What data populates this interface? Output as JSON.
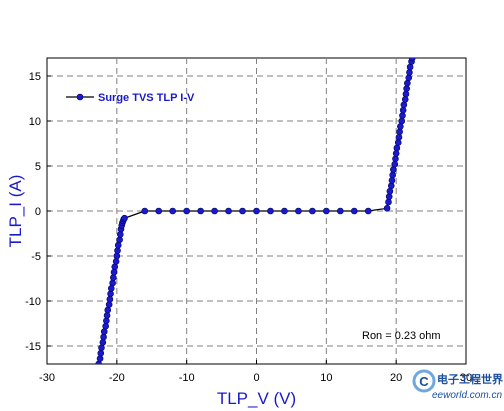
{
  "chart_data": {
    "type": "line",
    "title": "",
    "xlabel": "TLP_V (V)",
    "ylabel": "TLP_I (A)",
    "xlim": [
      -30,
      30
    ],
    "ylim": [
      -17,
      17
    ],
    "xticks": [
      -30,
      -20,
      -10,
      0,
      10,
      20,
      30
    ],
    "yticks": [
      -15,
      -10,
      -5,
      0,
      5,
      10,
      15
    ],
    "grid": true,
    "legend_position": "top-left",
    "series": [
      {
        "name": "Surge TVS TLP I-V",
        "color": "#1a1acc",
        "line_color": "#000000",
        "marker": "circle",
        "x": [
          -22.6,
          -22.4,
          -22.3,
          -22.2,
          -22.0,
          -21.9,
          -21.8,
          -21.6,
          -21.5,
          -21.4,
          -21.3,
          -21.1,
          -21.0,
          -20.9,
          -20.8,
          -20.6,
          -20.5,
          -20.4,
          -20.3,
          -20.1,
          -20.0,
          -19.9,
          -19.8,
          -19.6,
          -19.5,
          -19.4,
          -19.3,
          -19.2,
          -19.1,
          -19.0,
          -18.9,
          -16.0,
          -14.0,
          -12.0,
          -10.0,
          -8.0,
          -6.0,
          -4.0,
          -2.0,
          0.0,
          2.0,
          4.0,
          6.0,
          8.0,
          10.0,
          12.0,
          14.0,
          16.0,
          18.7,
          18.9,
          19.0,
          19.1,
          19.3,
          19.4,
          19.5,
          19.6,
          19.8,
          19.9,
          20.0,
          20.1,
          20.3,
          20.4,
          20.5,
          20.6,
          20.8,
          20.9,
          21.0,
          21.1,
          21.3,
          21.4,
          21.5,
          21.6,
          21.8,
          21.9,
          22.0,
          22.2,
          22.3
        ],
        "y": [
          -17.0,
          -16.4,
          -15.8,
          -15.2,
          -14.6,
          -14.0,
          -13.4,
          -12.8,
          -12.2,
          -11.6,
          -11.0,
          -10.4,
          -9.8,
          -9.2,
          -8.6,
          -8.0,
          -7.4,
          -6.8,
          -6.2,
          -5.6,
          -5.0,
          -4.4,
          -3.8,
          -3.2,
          -2.6,
          -2.0,
          -1.6,
          -1.3,
          -1.1,
          -0.9,
          -0.8,
          0,
          0,
          0,
          0,
          0,
          0,
          0,
          0,
          0,
          0,
          0,
          0,
          0,
          0,
          0,
          0,
          0,
          0.3,
          1.0,
          1.6,
          2.2,
          2.8,
          3.4,
          4.0,
          4.6,
          5.2,
          5.8,
          6.4,
          7.0,
          7.6,
          8.2,
          8.8,
          9.4,
          10.0,
          10.6,
          11.2,
          11.8,
          12.4,
          13.0,
          13.6,
          14.2,
          14.8,
          15.4,
          16.0,
          16.6,
          17.0
        ]
      }
    ],
    "annotations": [
      "Ron = 0.23 ohm"
    ]
  },
  "watermark": {
    "brand": "电子工程世界",
    "site": "eeworld.com.cn",
    "logo_letter": "C"
  }
}
